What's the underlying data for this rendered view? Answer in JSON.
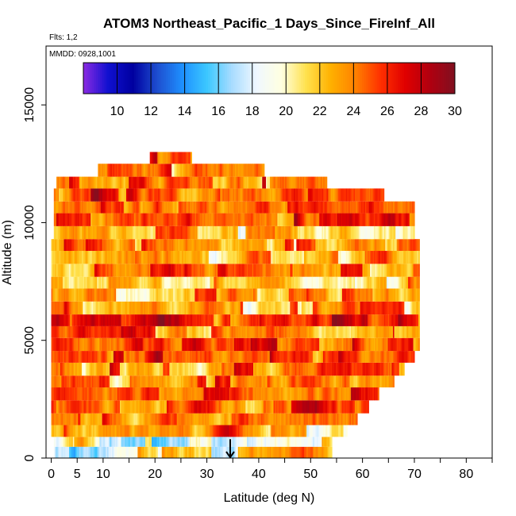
{
  "chart_data": {
    "type": "heatmap",
    "title": "ATOM3 Northeast_Pacific_1 Days_Since_FireInf_All",
    "flights_note": "Flts: 1,2",
    "dates_note": "MMDD: 0928,1001",
    "xlabel": "Latitude (deg N)",
    "ylabel": "Altitude (m)",
    "xlim": [
      -1,
      85
    ],
    "ylim": [
      0,
      17500
    ],
    "x_ticks": [
      0,
      5,
      10,
      15,
      20,
      25,
      30,
      35,
      40,
      45,
      50,
      55,
      60,
      65,
      70,
      75,
      80,
      85
    ],
    "x_tick_labels": [
      "0",
      "5",
      "10",
      "20",
      "30",
      "40",
      "50",
      "60",
      "70",
      "80"
    ],
    "x_tick_label_values": [
      0,
      5,
      10,
      20,
      30,
      40,
      50,
      60,
      70,
      80
    ],
    "y_ticks": [
      0,
      5000,
      10000,
      15000
    ],
    "y_tick_labels": [
      "0",
      "5000",
      "10000",
      "15000"
    ],
    "colorbar": {
      "range": [
        8,
        30
      ],
      "tick_labels": [
        "10",
        "12",
        "14",
        "16",
        "18",
        "20",
        "22",
        "24",
        "26",
        "28",
        "30"
      ],
      "tick_values": [
        10,
        12,
        14,
        16,
        18,
        20,
        22,
        24,
        26,
        28,
        30
      ],
      "colors": [
        "#8B2BE2",
        "#1010D0",
        "#0000A0",
        "#1E4FD0",
        "#1E90FF",
        "#3CC8FF",
        "#A8DCFF",
        "#F0F8FF",
        "#FFFFE0",
        "#FFE14D",
        "#FFB000",
        "#FF8000",
        "#FF3000",
        "#E00000",
        "#B00010",
        "#801020"
      ]
    },
    "layers": [
      {
        "alt_bottom": 0,
        "alt_top": 480,
        "lat_start": 0.5,
        "lat_end": 54,
        "mean": 20
      },
      {
        "alt_bottom": 480,
        "alt_top": 900,
        "lat_start": 0.5,
        "lat_end": 54,
        "mean": 19
      },
      {
        "alt_bottom": 900,
        "alt_top": 1400,
        "lat_start": 0,
        "lat_end": 57,
        "mean": 22
      },
      {
        "alt_bottom": 1400,
        "alt_top": 1900,
        "lat_start": 0,
        "lat_end": 59,
        "mean": 24
      },
      {
        "alt_bottom": 1900,
        "alt_top": 2450,
        "lat_start": 0,
        "lat_end": 61,
        "mean": 25
      },
      {
        "alt_bottom": 2450,
        "alt_top": 3000,
        "lat_start": 0,
        "lat_end": 63,
        "mean": 25
      },
      {
        "alt_bottom": 3000,
        "alt_top": 3500,
        "lat_start": 0,
        "lat_end": 66,
        "mean": 24
      },
      {
        "alt_bottom": 3500,
        "alt_top": 4050,
        "lat_start": 0,
        "lat_end": 68,
        "mean": 24
      },
      {
        "alt_bottom": 4050,
        "alt_top": 4550,
        "lat_start": 0,
        "lat_end": 70,
        "mean": 25
      },
      {
        "alt_bottom": 4550,
        "alt_top": 5100,
        "lat_start": 0,
        "lat_end": 71,
        "mean": 25
      },
      {
        "alt_bottom": 5100,
        "alt_top": 5600,
        "lat_start": 0,
        "lat_end": 71,
        "mean": 24
      },
      {
        "alt_bottom": 5600,
        "alt_top": 6100,
        "lat_start": 0,
        "lat_end": 71,
        "mean": 26
      },
      {
        "alt_bottom": 6100,
        "alt_top": 6650,
        "lat_start": 0,
        "lat_end": 71,
        "mean": 23
      },
      {
        "alt_bottom": 6650,
        "alt_top": 7200,
        "lat_start": 0,
        "lat_end": 71,
        "mean": 23
      },
      {
        "alt_bottom": 7200,
        "alt_top": 7700,
        "lat_start": 0,
        "lat_end": 71,
        "mean": 22
      },
      {
        "alt_bottom": 7700,
        "alt_top": 8250,
        "lat_start": 0,
        "lat_end": 71,
        "mean": 23
      },
      {
        "alt_bottom": 8250,
        "alt_top": 8800,
        "lat_start": 0,
        "lat_end": 71,
        "mean": 23
      },
      {
        "alt_bottom": 8800,
        "alt_top": 9300,
        "lat_start": 0,
        "lat_end": 71,
        "mean": 24
      },
      {
        "alt_bottom": 9300,
        "alt_top": 9850,
        "lat_start": 0.5,
        "lat_end": 70,
        "mean": 22
      },
      {
        "alt_bottom": 9850,
        "alt_top": 10400,
        "lat_start": 0.5,
        "lat_end": 70,
        "mean": 25
      },
      {
        "alt_bottom": 10400,
        "alt_top": 10900,
        "lat_start": 0.5,
        "lat_end": 70,
        "mean": 24
      },
      {
        "alt_bottom": 10900,
        "alt_top": 11450,
        "lat_start": 0.5,
        "lat_end": 64,
        "mean": 25
      },
      {
        "alt_bottom": 11450,
        "alt_top": 11950,
        "lat_start": 1,
        "lat_end": 53,
        "mean": 24
      },
      {
        "alt_bottom": 11950,
        "alt_top": 12500,
        "lat_start": 9,
        "lat_end": 41,
        "mean": 24
      },
      {
        "alt_bottom": 12500,
        "alt_top": 13000,
        "lat_start": 19,
        "lat_end": 27,
        "mean": 27
      }
    ],
    "markers": [
      {
        "type": "arrow",
        "lat": 34.5,
        "alt_from": 800,
        "alt_to": 0
      }
    ]
  }
}
